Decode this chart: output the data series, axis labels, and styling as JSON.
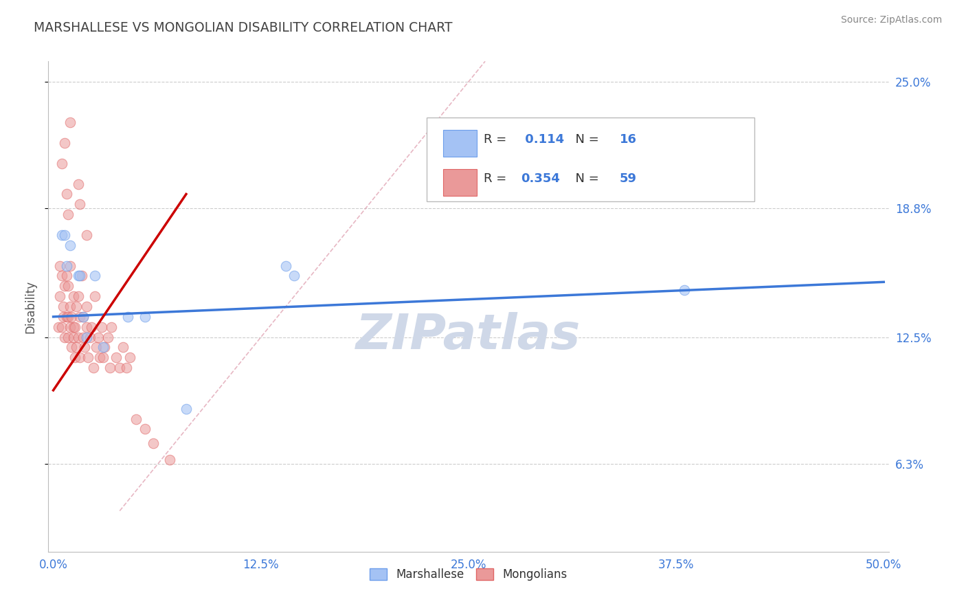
{
  "title": "MARSHALLESE VS MONGOLIAN DISABILITY CORRELATION CHART",
  "source_text": "Source: ZipAtlas.com",
  "ylabel": "Disability",
  "xlim": [
    0.0,
    0.5
  ],
  "ylim": [
    0.02,
    0.26
  ],
  "xtick_labels": [
    "0.0%",
    "",
    "12.5%",
    "",
    "25.0%",
    "",
    "37.5%",
    "",
    "50.0%"
  ],
  "xtick_vals": [
    0.0,
    0.0625,
    0.125,
    0.1875,
    0.25,
    0.3125,
    0.375,
    0.4375,
    0.5
  ],
  "xtick_display": [
    "0.0%",
    "12.5%",
    "25.0%",
    "37.5%",
    "50.0%"
  ],
  "xtick_display_vals": [
    0.0,
    0.125,
    0.25,
    0.375,
    0.5
  ],
  "ytick_labels_right": [
    "6.3%",
    "12.5%",
    "18.8%",
    "25.0%"
  ],
  "ytick_vals": [
    0.063,
    0.125,
    0.188,
    0.25
  ],
  "grid_color": "#cccccc",
  "background_color": "#ffffff",
  "blue_color": "#a4c2f4",
  "pink_color": "#ea9999",
  "blue_scatter_edge": "#6d9eeb",
  "pink_scatter_edge": "#e06666",
  "blue_line_color": "#3c78d8",
  "pink_line_color": "#cc0000",
  "diag_line_color": "#dd99aa",
  "title_color": "#434343",
  "watermark_color": "#cfd8e8",
  "blue_R": 0.114,
  "blue_N": 16,
  "pink_R": 0.354,
  "pink_N": 59,
  "blue_line_x": [
    0.0,
    0.5
  ],
  "blue_line_y": [
    0.135,
    0.152
  ],
  "pink_line_x": [
    0.0,
    0.08
  ],
  "pink_line_y": [
    0.099,
    0.195
  ],
  "diag_line_x": [
    0.04,
    0.26
  ],
  "diag_line_y": [
    0.04,
    0.26
  ],
  "marshallese_x": [
    0.005,
    0.007,
    0.008,
    0.01,
    0.015,
    0.016,
    0.018,
    0.02,
    0.025,
    0.03,
    0.045,
    0.055,
    0.08,
    0.14,
    0.145,
    0.38
  ],
  "marshallese_y": [
    0.175,
    0.175,
    0.16,
    0.17,
    0.155,
    0.155,
    0.135,
    0.125,
    0.155,
    0.12,
    0.135,
    0.135,
    0.09,
    0.16,
    0.155,
    0.148
  ],
  "mongolian_x": [
    0.003,
    0.004,
    0.004,
    0.005,
    0.005,
    0.006,
    0.006,
    0.007,
    0.007,
    0.008,
    0.008,
    0.009,
    0.009,
    0.009,
    0.01,
    0.01,
    0.01,
    0.011,
    0.011,
    0.012,
    0.012,
    0.012,
    0.013,
    0.013,
    0.014,
    0.014,
    0.015,
    0.015,
    0.016,
    0.016,
    0.017,
    0.018,
    0.018,
    0.019,
    0.02,
    0.02,
    0.021,
    0.022,
    0.023,
    0.024,
    0.025,
    0.026,
    0.027,
    0.028,
    0.029,
    0.03,
    0.031,
    0.033,
    0.034,
    0.035,
    0.038,
    0.04,
    0.042,
    0.044,
    0.046,
    0.05,
    0.055,
    0.06,
    0.07
  ],
  "mongolian_y": [
    0.13,
    0.16,
    0.145,
    0.13,
    0.155,
    0.135,
    0.14,
    0.125,
    0.15,
    0.135,
    0.155,
    0.125,
    0.135,
    0.15,
    0.13,
    0.14,
    0.16,
    0.12,
    0.135,
    0.125,
    0.13,
    0.145,
    0.115,
    0.13,
    0.12,
    0.14,
    0.125,
    0.145,
    0.115,
    0.135,
    0.155,
    0.125,
    0.135,
    0.12,
    0.13,
    0.14,
    0.115,
    0.125,
    0.13,
    0.11,
    0.145,
    0.12,
    0.125,
    0.115,
    0.13,
    0.115,
    0.12,
    0.125,
    0.11,
    0.13,
    0.115,
    0.11,
    0.12,
    0.11,
    0.115,
    0.085,
    0.08,
    0.073,
    0.065
  ],
  "mongolian_outliers_x": [
    0.005,
    0.007,
    0.01,
    0.015,
    0.008,
    0.009,
    0.016,
    0.02
  ],
  "mongolian_outliers_y": [
    0.21,
    0.22,
    0.23,
    0.2,
    0.195,
    0.185,
    0.19,
    0.175
  ]
}
